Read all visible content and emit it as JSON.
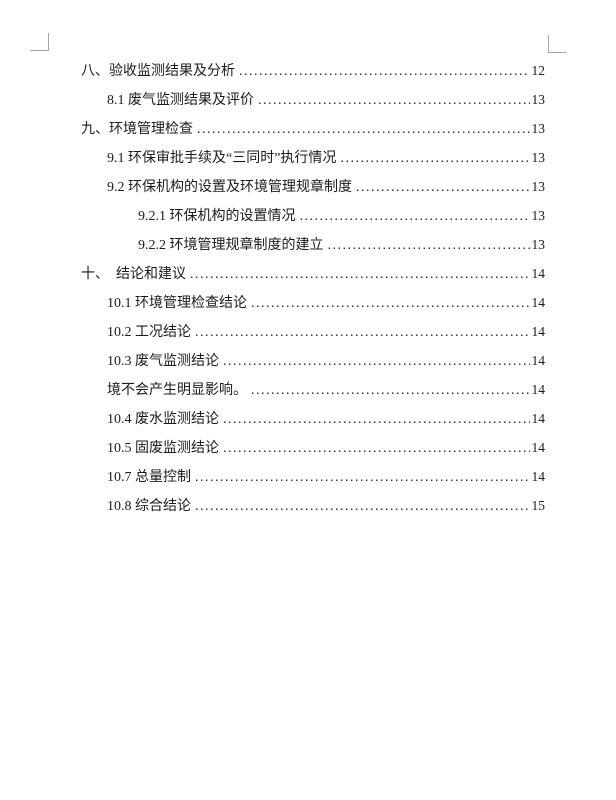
{
  "page": {
    "background_color": "#ffffff",
    "text_color": "#1c1c1c",
    "crop_mark_color": "#a6a6a6"
  },
  "toc": {
    "entries": [
      {
        "level": 1,
        "label": "八、验收监测结果及分析",
        "page": "12"
      },
      {
        "level": 2,
        "label": "8.1 废气监测结果及评价",
        "page": "13"
      },
      {
        "level": 1,
        "label": "九、环境管理检查",
        "page": "13"
      },
      {
        "level": 2,
        "label": "9.1 环保审批手续及“三同时”执行情况",
        "page": "13"
      },
      {
        "level": 2,
        "label": "9.2 环保机构的设置及环境管理规章制度",
        "page": "13"
      },
      {
        "level": 3,
        "label": "9.2.1 环保机构的设置情况",
        "page": "13"
      },
      {
        "level": 3,
        "label": "9.2.2 环境管理规章制度的建立",
        "page": "13"
      },
      {
        "level": 1,
        "label": "十、　结论和建议",
        "page": "14"
      },
      {
        "level": 2,
        "label": "10.1 环境管理检查结论",
        "page": "14"
      },
      {
        "level": 2,
        "label": "10.2 工况结论",
        "page": "14"
      },
      {
        "level": 2,
        "label": "10.3 废气监测结论",
        "page": "14"
      },
      {
        "level": 2,
        "label": "境不会产生明显影响。",
        "page": "14"
      },
      {
        "level": 2,
        "label": "10.4 废水监测结论",
        "page": "14"
      },
      {
        "level": 2,
        "label": "10.5 固废监测结论",
        "page": "14"
      },
      {
        "level": 2,
        "label": "10.7 总量控制",
        "page": "14"
      },
      {
        "level": 2,
        "label": "10.8 综合结论",
        "page": "15"
      }
    ]
  }
}
